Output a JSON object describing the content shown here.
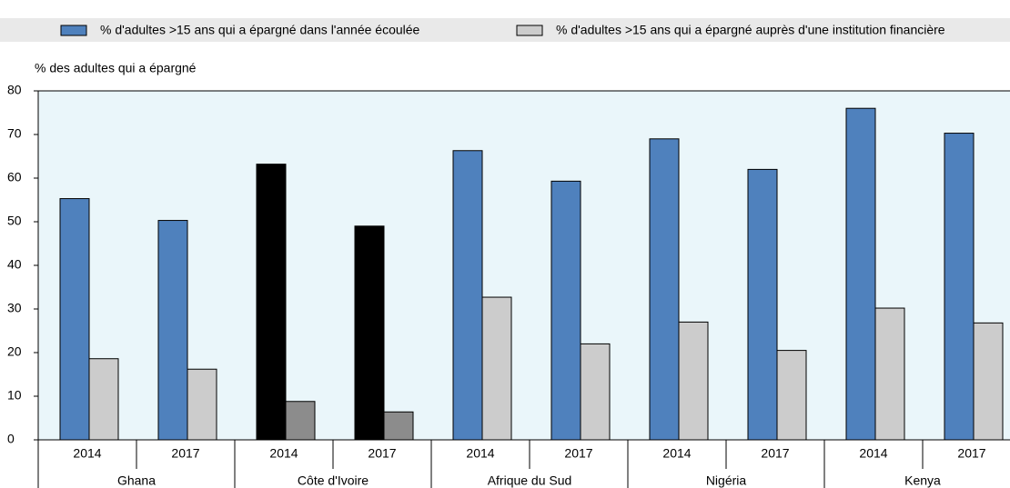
{
  "chart_data": {
    "type": "bar",
    "y_label": "% des adultes qui a épargné",
    "categories": [
      "2014",
      "2017",
      "2014",
      "2017",
      "2014",
      "2017",
      "2014",
      "2017",
      "2014",
      "2017"
    ],
    "groups": [
      "Ghana",
      "Côte d'Ivoire",
      "Afrique du Sud",
      "Nigéria",
      "Kenya"
    ],
    "series": [
      {
        "name": "% d'adultes >15 ans qui a épargné dans l'année écoulée",
        "color": "#4f81bd",
        "colors": [
          "#4f81bd",
          "#4f81bd",
          "#000000",
          "#000000",
          "#4f81bd",
          "#4f81bd",
          "#4f81bd",
          "#4f81bd",
          "#4f81bd",
          "#4f81bd"
        ],
        "values": [
          55.3,
          50.3,
          63.2,
          49,
          66.3,
          59.3,
          69,
          62,
          76,
          70.3
        ]
      },
      {
        "name": "% d'adultes >15 ans qui a épargné auprès d'une institution financière",
        "color": "#cccccc",
        "colors": [
          "#cccccc",
          "#cccccc",
          "#8c8c8c",
          "#8c8c8c",
          "#cccccc",
          "#cccccc",
          "#cccccc",
          "#cccccc",
          "#cccccc",
          "#cccccc"
        ],
        "values": [
          18.6,
          16.2,
          8.8,
          6.4,
          32.7,
          22,
          27,
          20.5,
          30.2,
          26.8
        ]
      }
    ],
    "ylim": [
      0,
      80
    ],
    "yticks": [
      0,
      10,
      20,
      30,
      40,
      50,
      60,
      70,
      80
    ],
    "grid": false
  }
}
